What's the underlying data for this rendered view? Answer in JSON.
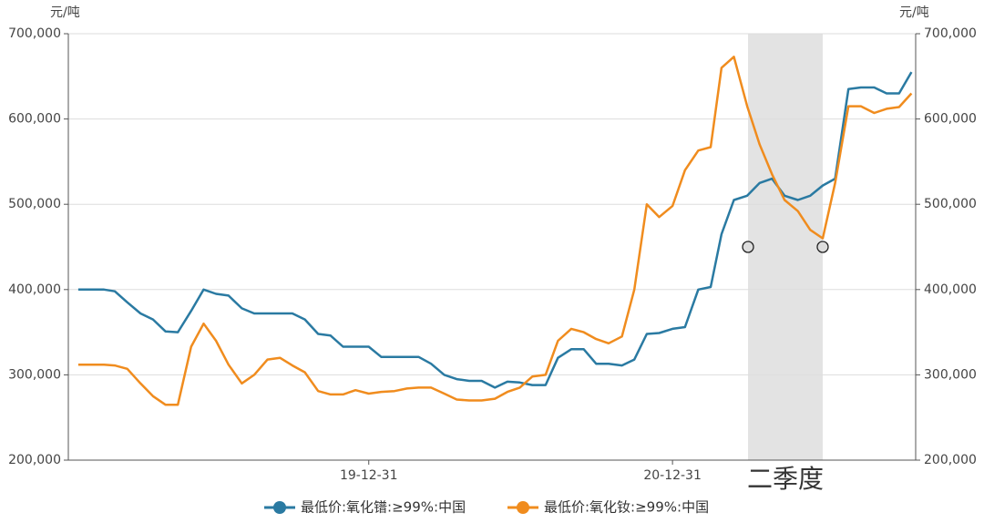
{
  "chart_data": {
    "type": "line",
    "y_unit": "元/吨",
    "y2_unit": "元/吨",
    "x": [
      "19-01-15",
      "19-01-31",
      "19-02-15",
      "19-02-28",
      "19-03-15",
      "19-03-31",
      "19-04-15",
      "19-04-30",
      "19-05-15",
      "19-05-31",
      "19-06-15",
      "19-06-30",
      "19-07-15",
      "19-07-31",
      "19-08-15",
      "19-08-31",
      "19-09-15",
      "19-09-30",
      "19-10-15",
      "19-10-31",
      "19-11-15",
      "19-11-30",
      "19-12-15",
      "19-12-31",
      "20-01-15",
      "20-01-31",
      "20-02-15",
      "20-02-29",
      "20-03-15",
      "20-03-31",
      "20-04-15",
      "20-04-30",
      "20-05-15",
      "20-05-31",
      "20-06-15",
      "20-06-30",
      "20-07-15",
      "20-07-31",
      "20-08-15",
      "20-08-31",
      "20-09-15",
      "20-09-30",
      "20-10-15",
      "20-10-31",
      "20-11-15",
      "20-11-30",
      "20-12-15",
      "20-12-31",
      "21-01-15",
      "21-01-31",
      "21-02-15",
      "21-02-28",
      "21-03-15",
      "21-03-31",
      "21-04-15",
      "21-04-30",
      "21-05-15",
      "21-05-31",
      "21-06-15",
      "21-06-30",
      "21-07-15",
      "21-07-31",
      "21-08-15",
      "21-08-31",
      "21-09-15",
      "21-09-30",
      "21-10-15"
    ],
    "series": [
      {
        "name": "最低价:氧化镨:≥99%:中国",
        "color": "#2a7aa2",
        "values": [
          400000,
          400000,
          400000,
          398000,
          385000,
          372000,
          365000,
          351000,
          350000,
          375000,
          400000,
          395000,
          393000,
          378000,
          372000,
          372000,
          372000,
          372000,
          365000,
          348000,
          346000,
          333000,
          333000,
          333000,
          321000,
          321000,
          321000,
          321000,
          313000,
          300000,
          295000,
          293000,
          293000,
          285000,
          292000,
          291000,
          288000,
          288000,
          320000,
          330000,
          330000,
          313000,
          313000,
          311000,
          318000,
          348000,
          349000,
          354000,
          356000,
          400000,
          403000,
          465000,
          505000,
          510000,
          525000,
          530000,
          510000,
          505000,
          510000,
          522000,
          530000,
          635000,
          637000,
          637000,
          630000,
          630000,
          655000
        ]
      },
      {
        "name": "最低价:氧化钕:≥99%:中国",
        "color": "#f08c1e",
        "values": [
          312000,
          312000,
          312000,
          311000,
          307000,
          290000,
          275000,
          265000,
          265000,
          333000,
          360000,
          340000,
          312000,
          290000,
          300000,
          318000,
          320000,
          311000,
          303000,
          281000,
          277000,
          277000,
          282000,
          278000,
          280000,
          281000,
          284000,
          285000,
          285000,
          278000,
          271000,
          270000,
          270000,
          272000,
          280000,
          285000,
          298000,
          300000,
          340000,
          354000,
          350000,
          342000,
          337000,
          345000,
          400000,
          500000,
          485000,
          498000,
          540000,
          563000,
          567000,
          660000,
          673000,
          615000,
          570000,
          535000,
          505000,
          492000,
          470000,
          460000,
          525000,
          615000,
          615000,
          607000,
          612000,
          614000,
          630000
        ]
      }
    ],
    "xlim": [
      "19-01-03",
      "21-10-20"
    ],
    "xticks": [
      "19-12-31",
      "20-12-31"
    ],
    "ylim": [
      200000,
      700000
    ],
    "yticks": [
      {
        "value": 200000,
        "label": "200,000"
      },
      {
        "value": 300000,
        "label": "300,000"
      },
      {
        "value": 400000,
        "label": "400,000"
      },
      {
        "value": 500000,
        "label": "500,000"
      },
      {
        "value": 600000,
        "label": "600,000"
      },
      {
        "value": 700000,
        "label": "700,000"
      }
    ],
    "y2lim": [
      200000,
      700000
    ],
    "y2ticks": [
      {
        "value": 200000,
        "label": "200,000"
      },
      {
        "value": 300000,
        "label": "300,000"
      },
      {
        "value": 400000,
        "label": "400,000"
      },
      {
        "value": 500000,
        "label": "500,000"
      },
      {
        "value": 600000,
        "label": "600,000"
      },
      {
        "value": 700000,
        "label": "700,000"
      }
    ],
    "grid": true,
    "legend": "bottom",
    "highlight": {
      "from": "21-04-01",
      "to": "21-06-30",
      "label": "二季度",
      "color": "#e3e3e3"
    },
    "markers": [
      {
        "x": "21-04-01",
        "y": 450000
      },
      {
        "x": "21-06-30",
        "y": 450000
      }
    ]
  }
}
